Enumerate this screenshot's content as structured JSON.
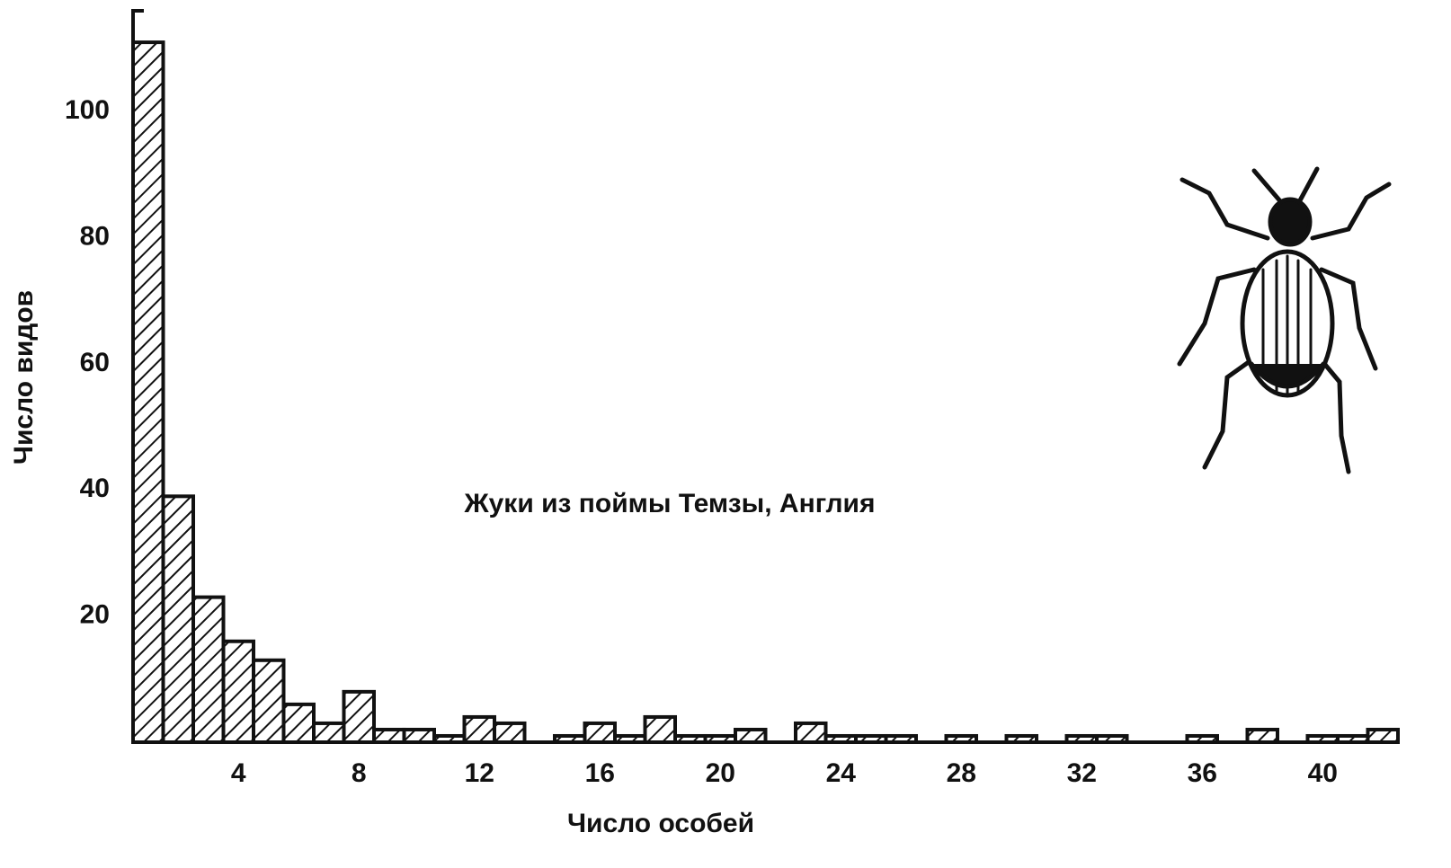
{
  "chart_data": {
    "type": "histogram",
    "annotation": "Жуки из поймы Темзы, Англия",
    "x_label": "Число особей",
    "y_label": "Число видов",
    "bins": [
      0.5,
      1.5,
      2.5,
      3.5,
      4.5,
      5.5,
      6.5,
      7.5,
      8.5,
      9.5,
      10.5,
      11.5,
      12.5,
      13.5,
      14.5,
      15.5,
      16.5,
      17.5,
      18.5,
      19.5,
      20.5,
      21.5,
      22.5,
      23.5,
      24.5,
      25.5,
      26.5,
      27.5,
      28.5,
      29.5,
      30.5,
      31.5,
      32.5,
      33.5,
      34.5,
      35.5,
      36.5,
      37.5,
      38.5,
      39.5,
      40.5,
      41.5,
      42.5
    ],
    "counts": [
      111,
      39,
      23,
      16,
      13,
      6,
      3,
      8,
      2,
      2,
      1,
      4,
      3,
      0,
      1,
      3,
      1,
      4,
      1,
      1,
      2,
      0,
      3,
      1,
      1,
      1,
      0,
      1,
      0,
      1,
      0,
      1,
      1,
      0,
      0,
      1,
      0,
      2,
      0,
      1,
      1,
      2
    ],
    "xlim": [
      0.5,
      42.5
    ],
    "xticks": [
      4,
      8,
      12,
      16,
      20,
      24,
      28,
      32,
      36,
      40
    ],
    "ylim": [
      0,
      116
    ],
    "yticks": [
      20,
      40,
      60,
      80,
      100
    ],
    "color": "#111111",
    "hatch": true,
    "grid": false
  }
}
